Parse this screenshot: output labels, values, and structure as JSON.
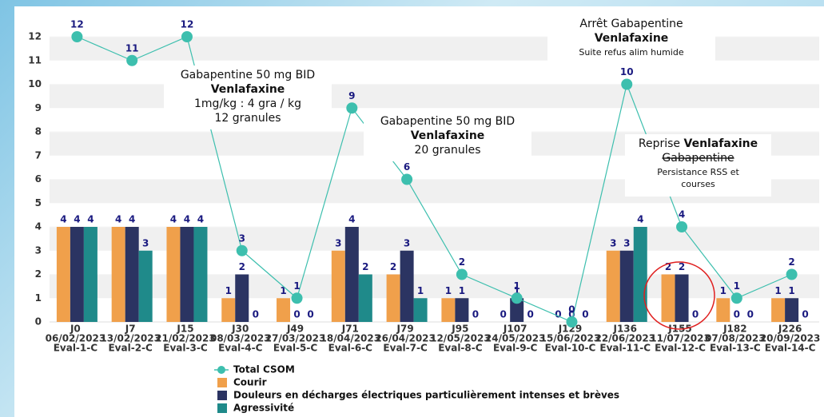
{
  "chart_data": {
    "type": "bar_line",
    "categories": [
      [
        "J0",
        "06/02/2023",
        "Eval-1-C"
      ],
      [
        "J7",
        "13/02/2023",
        "Eval-2-C"
      ],
      [
        "J15",
        "21/02/2023",
        "Eval-3-C"
      ],
      [
        "J30",
        "08/03/2023",
        "Eval-4-C"
      ],
      [
        "J49",
        "27/03/2023",
        "Eval-5-C"
      ],
      [
        "J71",
        "18/04/2023",
        "Eval-6-C"
      ],
      [
        "J79",
        "26/04/2023",
        "Eval-7-C"
      ],
      [
        "J95",
        "12/05/2023",
        "Eval-8-C"
      ],
      [
        "J107",
        "24/05/2023",
        "Eval-9-C"
      ],
      [
        "J129",
        "15/06/2023",
        "Eval-10-C"
      ],
      [
        "J136",
        "22/06/2023",
        "Eval-11-C"
      ],
      [
        "J155",
        "11/07/2023",
        "Eval-12-C"
      ],
      [
        "J182",
        "07/08/2023",
        "Eval-13-C"
      ],
      [
        "J226",
        "20/09/2023",
        "Eval-14-C"
      ]
    ],
    "series": [
      {
        "name": "Total CSOM",
        "type": "line",
        "color": "#3dbfae",
        "values": [
          12,
          11,
          12,
          3,
          1,
          9,
          6,
          2,
          1,
          0,
          10,
          4,
          1,
          2
        ]
      },
      {
        "name": "Courir",
        "type": "bar",
        "color": "#f0a04b",
        "values": [
          4,
          4,
          4,
          1,
          1,
          3,
          2,
          1,
          0,
          0,
          3,
          2,
          1,
          1
        ]
      },
      {
        "name": "Douleurs en décharges électriques particulièrement intenses et brèves",
        "type": "bar",
        "color": "#2b3462",
        "values": [
          4,
          4,
          4,
          2,
          0,
          4,
          3,
          1,
          1,
          0,
          3,
          2,
          0,
          1
        ]
      },
      {
        "name": "Agressivité",
        "type": "bar",
        "color": "#1f8a8a",
        "values": [
          4,
          3,
          4,
          0,
          0,
          2,
          1,
          0,
          0,
          0,
          4,
          0,
          0,
          0
        ]
      }
    ],
    "ylim": [
      0,
      12
    ],
    "yticks": [
      0,
      1,
      2,
      3,
      4,
      5,
      6,
      7,
      8,
      9,
      10,
      11,
      12
    ],
    "grid": "banded",
    "legend": "bottom-left",
    "annotations": [
      {
        "lines": [
          [
            {
              "text": "Gabapentine 50 mg BID"
            }
          ],
          [
            {
              "text": "Venlafaxine",
              "bold": true
            }
          ],
          [
            {
              "text": "1mg/kg : 4 gra / kg"
            }
          ],
          [
            {
              "text": "12 granules"
            }
          ]
        ]
      },
      {
        "lines": [
          [
            {
              "text": "Gabapentine 50 mg BID"
            }
          ],
          [
            {
              "text": "Venlafaxine",
              "bold": true
            }
          ],
          [
            {
              "text": "20 granules"
            }
          ]
        ]
      },
      {
        "lines": [
          [
            {
              "text": "Arrêt Gabapentine"
            }
          ],
          [
            {
              "text": "Venlafaxine",
              "bold": true
            }
          ],
          [
            {
              "text": "Suite refus alim humide",
              "small": true
            }
          ]
        ]
      },
      {
        "lines": [
          [
            {
              "text": "Reprise "
            },
            {
              "text": "Venlafaxine",
              "bold": true
            }
          ],
          [
            {
              "text": "Gabapentine",
              "strike": true
            }
          ],
          [
            {
              "text": "Persistance RSS et",
              "small": true
            }
          ],
          [
            {
              "text": "courses",
              "small": true
            }
          ]
        ]
      }
    ]
  }
}
